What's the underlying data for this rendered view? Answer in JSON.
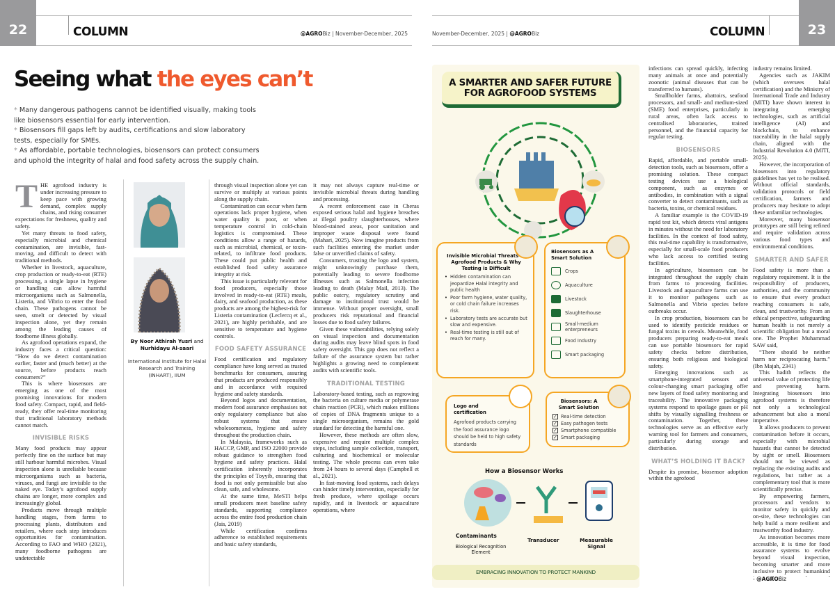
{
  "header_left": {
    "page_number": "22",
    "section": "COLUMN",
    "brand_bold": "@AGRO",
    "brand_light": "Biz",
    "sep": "|",
    "date": "November-December, 2025"
  },
  "header_right": {
    "page_number": "23",
    "section": "COLUMN",
    "brand_bold": "@AGRO",
    "brand_light": "Biz",
    "sep": "|",
    "date": "November-December, 2025"
  },
  "headline": {
    "main": "Seeing what ",
    "accent": "the eyes can’t",
    "accent_color": "#ef5a2e"
  },
  "bullets": [
    "Many dangerous pathogens cannot be identified visually, making tools like biosensors essential for early intervention.",
    "Biosensors fill gaps left by audits, certifications and slow laboratory tests, especially for SMEs.",
    "As affordable, portable technologies, biosensors can protect consumers and uphold the integrity of halal and food safety across the supply chain."
  ],
  "author": {
    "by": "By ",
    "name1": "Noor Athirah Yusri",
    "and": " and ",
    "name2": "Nurhidayu Al-saari",
    "affiliation": "International Institute for Halal Research and Training (INHART), IIUM"
  },
  "columns": {
    "c1": [
      {
        "k": "drop",
        "cap": "T",
        "t": "HE agrofood industry is under increasing pressure to keep pace with growing demand, complex supply chains, and rising consumer expectations for freshness, quality and safety."
      },
      {
        "k": "p",
        "t": "Yet many threats to food safety, especially microbial and chemical contamination, are invisible, fast-moving, and difficult to detect with traditional methods."
      },
      {
        "k": "p",
        "t": "Whether in livestock, aquaculture, crop production or ready-to-eat (RTE) processing, a single lapse in hygiene or handling can allow harmful microorganisms such as Salmonella, Listeria, and Vibrio to enter the food chain. These pathogens cannot be seen, smelt or detected by visual inspection alone, yet they remain among the leading causes of foodborne illness globally."
      },
      {
        "k": "p",
        "t": "As agrofood operations expand, the industry faces a critical question: “How do we detect contamination earlier, faster and (much better) at the source, before products reach consumers?”"
      },
      {
        "k": "p",
        "t": "This is where biosensors are emerging as one of the most promising innovations for modern food safety. Compact, rapid, and field-ready, they offer real-time monitoring that traditional laboratory methods cannot match."
      },
      {
        "k": "h",
        "t": "INVISIBLE RISKS"
      },
      {
        "k": "ni",
        "t": "Many food products may appear perfectly fine on the surface but may still harbour harmful microbes. Visual inspection alone is unreliable because microorganisms such as bacteria, viruses, and fungi are invisible to the naked eye. Today’s agrofood supply chains are longer, more complex and increasingly global."
      },
      {
        "k": "p",
        "t": "Products move through multiple handling stages, from farms to processing plants, distributors and retailers, where each step introduces opportunities for contamination. According to FAO and WHO (2021), many foodborne pathogens are undetectable"
      }
    ],
    "c2": [
      {
        "k": "ni",
        "t": "through visual inspection alone yet can survive or multiply at various points along the supply chain."
      },
      {
        "k": "p",
        "t": "Contamination can occur when farm operations lack proper hygiene, when water quality is poor, or when temperature control in cold-chain logistics is compromised. These conditions allow a range of hazards, such as microbial, chemical, or toxin-related, to infiltrate food products. These could put public health and established food safety assurance integrity at risk."
      },
      {
        "k": "p",
        "t": "This issue is particularly relevant for food producers, especially those involved in ready-to-eat (RTE) meals, dairy, and seafood production, as these products are among the highest-risk for Listeria contamination (Leclercq et al., 2021), are highly perishable, and are sensitive to temperature and hygiene controls."
      },
      {
        "k": "h",
        "t": "FOOD SAFETY ASSURANCE"
      },
      {
        "k": "ni",
        "t": "Food certification and regulatory compliance have long served as trusted benchmarks for consumers, assuring that products are produced responsibly and in accordance with required hygiene and safety standards."
      },
      {
        "k": "p",
        "t": "Beyond logos and documentation, modern food assurance emphasises not only regulatory compliance but also robust systems that ensure wholesomeness, hygiene and safety throughout the production chain."
      },
      {
        "k": "p",
        "t": "In Malaysia, frameworks such as HACCP, GMP, and ISO 22000 provide robust guidance to strengthen food hygiene and safety practices. Halal certification inherently incorporates the principles of Toyyib, ensuring that food is not only permissible but also clean, safe, and wholesome."
      },
      {
        "k": "p",
        "t": "At the same time, MeSTI helps small producers meet baseline safety standards, supporting compliance across the entire food production chain (Jais, 2019)"
      },
      {
        "k": "p",
        "t": "While certification confirms adherence to established requirements and basic safety standards,"
      }
    ],
    "c3": [
      {
        "k": "ni",
        "t": "it may not always capture real-time or invisible microbial threats during handling and processing."
      },
      {
        "k": "p",
        "t": "A recent enforcement case in Cheras exposed serious halal and hygiene breaches at illegal poultry slaughterhouses, where blood-stained areas, poor sanitation and improper waste disposal were found (Mahari, 2025). Now imagine products from such facilities entering the market under false or unverified claims of safety."
      },
      {
        "k": "p",
        "t": "Consumers, trusting the logo and system, might unknowingly purchase them, potentially leading to severe foodborne illnesses such as Salmonella infection leading to death (Malay Mail, 2013). The public outcry, regulatory scrutiny and damage to institutional trust would be immense. Without proper oversight, small producers risk reputational and financial losses due to food safety failures."
      },
      {
        "k": "p",
        "t": "Given these vulnerabilities, relying solely on visual inspection and documentation during audits may leave blind spots in food safety oversight. This gap does not reflect a failure of the assurance system but rather highlights a growing need to complement audits with scientific tools."
      },
      {
        "k": "h",
        "t": "TRADITIONAL TESTING"
      },
      {
        "k": "ni",
        "t": "Laboratory-based testing, such as regrowing the bacteria on culture media or polymerase chain reaction (PCR), which makes millions of copies of DNA fragments unique to a single microorganism, remains the gold standard for detecting the harmful one."
      },
      {
        "k": "p",
        "t": "However, these methods are often slow, expensive and require multiple complex steps, including sample collection, transport, culturing and biochemical or molecular testing. The whole process can even take from 24 hours to several days (Campbell et al., 2021)."
      },
      {
        "k": "p",
        "t": "In fast-moving food systems, such delays can hinder timely intervention, especially for fresh produce, where spoilage occurs rapidly, and in livestock or aquaculture operations, where"
      }
    ],
    "c4": [
      {
        "k": "ni",
        "t": "infections can spread quickly, infecting many animals at once and potentially zoonotic (animal diseases that can be transferred to humans)."
      },
      {
        "k": "p",
        "t": "Smallholder farms, abattoirs, seafood processors, and small- and medium-sized (SME) food enterprises, particularly in rural areas, often lack access to centralised laboratories, trained personnel, and the financial capacity for regular testing."
      },
      {
        "k": "h",
        "t": "BIOSENSORS"
      },
      {
        "k": "ni",
        "t": "Rapid, affordable, and portable small-detection tools, such as biosensors, offer a promising solution. These compact testing devices use a biological component, such as enzymes or antibodies, in combination with a signal converter to detect contaminants, such as bacteria, toxins, or chemical residues."
      },
      {
        "k": "p",
        "t": "A familiar example is the COVID-19 rapid test kit, which detects viral antigens in minutes without the need for laboratory facilities. In the context of food safety, this real-time capability is transformative, especially for small-scale food producers who lack access to certified testing facilities."
      },
      {
        "k": "p",
        "t": "In agriculture, biosensors can be integrated throughout the supply chain from farms to processing facilities. Livestock and aquaculture farms can use it to monitor pathogens such as Salmonella and Vibrio species before outbreaks occur."
      },
      {
        "k": "p",
        "t": "In crop production, biosensors can be used to identify pesticide residues or fungal toxins in cereals. Meanwhile, food producers preparing ready-to-eat meals can use portable biosensors for rapid safety checks before distribution, ensuring both religious and biological safety."
      },
      {
        "k": "p",
        "t": "Emerging innovations such as smartphone-integrated sensors and colour-changing smart packaging offer new layers of food safety monitoring and traceability. The innovative packaging systems respond to spoilage gases or pH shifts by visually signalling freshness or contamination. Together, these technologies serve as an effective early warning tool for farmers and consumers, particularly during storage and distribution."
      },
      {
        "k": "h",
        "t": "WHAT’S HOLDING IT BACK?"
      },
      {
        "k": "ni",
        "t": "Despite its promise, biosensor adoption within the agrofood"
      }
    ],
    "c5": [
      {
        "k": "ni",
        "t": "industry remains limited."
      },
      {
        "k": "p",
        "t": "Agencies such as JAKIM (which oversees halal certification) and the Ministry of International Trade and Industry (MITI) have shown interest in integrating emerging technologies, such as artificial intelligence (AI) and blockchain, to enhance traceability in the halal supply chain, aligned with the Industrial Revolution 4.0 (MITI, 2025)."
      },
      {
        "k": "p",
        "t": "However, the incorporation of biosensors into regulatory guidelines has yet to be realised. Without official standards, validation protocols or field certification, farmers and producers may hesitate to adopt these unfamiliar technologies."
      },
      {
        "k": "p",
        "t": "Moreover, many biosensor prototypes are still being refined and require validation across various food types and environmental conditions."
      },
      {
        "k": "h",
        "t": "SMARTER AND SAFER"
      },
      {
        "k": "ni",
        "t": "Food safety is more than a regulatory requirement. It is the responsibility of producers, authorities, and the community to ensure that every product reaching consumers is safe, clean, and trustworthy. From an ethical perspective, safeguarding human health is not merely a scientific obligation but a moral one. The Prophet Muhammad SAW said,"
      },
      {
        "k": "p",
        "t": "“There should be neither harm nor reciprocating harm.” (Ibn Majah, 2341)"
      },
      {
        "k": "p",
        "t": "This hadith reflects the universal value of protecting life and preventing harm. Integrating biosensors into agrofood systems is therefore not only a technological advancement but also a moral imperative."
      },
      {
        "k": "p",
        "t": "It allows producers to prevent contamination before it occurs, especially with microbial hazards that cannot be detected by sight or smell. Biosensors should not be viewed as replacing the existing audits and regulations, but rather as a complementary tool that is more scientifically precise."
      },
      {
        "k": "p",
        "t": "By empowering farmers, processors and vendors to monitor safety in quickly and on-site, these technologies can help build a more resilient and trustworthy food industry."
      },
      {
        "k": "p",
        "t": "As innovation becomes more accessible, it is time for food assurance systems to evolve beyond visual inspection, becoming smarter and more inclusive to protect humankind in today’s complex and interconnected food landscape."
      }
    ]
  },
  "signoff": {
    "dash": "- ",
    "bold": "@AGRO",
    "light": "Biz"
  },
  "infographic": {
    "title": "A SMARTER AND SAFER FUTURE FOR AGROFOOD SYSTEMS",
    "box1": {
      "title": "Invisible Microbial Threats in Agrofood Products & Why Testing is Difficult",
      "items": [
        "Hidden contamination can jeopardize Halal integrity and public health",
        "Poor farm hygiene, water quality, or cold chain failure increases risk.",
        "Laboratory tests are accurate but slow and expensive.",
        "Real-time testing is still out of reach for many."
      ]
    },
    "box2": {
      "title": "Biosensors as A Smart Solution",
      "items": [
        "Crops",
        "Aquaculture",
        "Livestock",
        "Slaughterhouse",
        "Small-medium enterpreneurs",
        "Food Industry",
        "Smart packaging"
      ]
    },
    "box3": {
      "title": "Logo and certification",
      "text": "Agrofood products carrying the food assurance logo should be held to high safety standards"
    },
    "box4": {
      "title": "Biosensors: A Smart Solution",
      "items": [
        "Real-time detection",
        "Easy pathogen tests",
        "Smartphone compatible",
        "Smart packaging"
      ]
    },
    "how": {
      "title": "How a Biosensor Works",
      "contaminants": "Contaminants",
      "bio": "Biological Recognition Element",
      "transducer": "Transducer",
      "signal": "Measurable Signal"
    },
    "banner": "EMBRACING INNOVATION TO PROTECT MANKIND",
    "colors": {
      "orange": "#f5a623",
      "green": "#1e6b35",
      "cream": "#fbf8ea"
    }
  }
}
